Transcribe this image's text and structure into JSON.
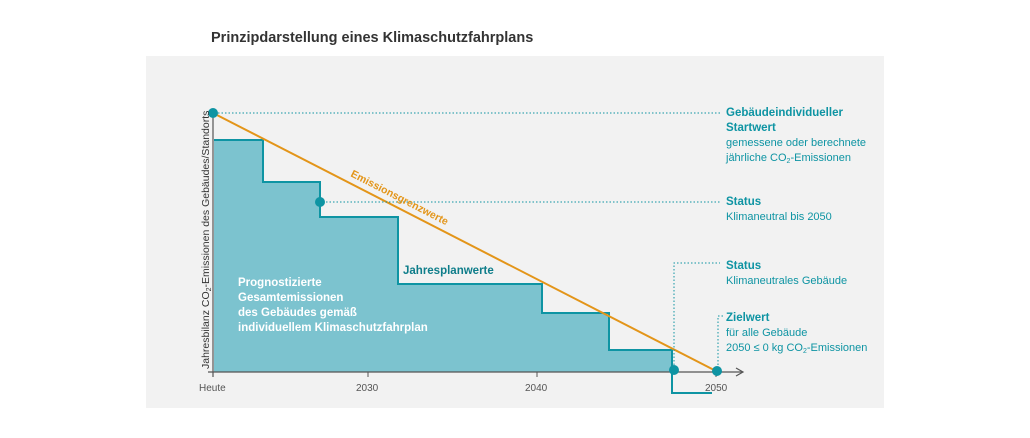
{
  "title": "Prinzipdarstellung eines Klimaschutzfahrplans",
  "y_axis_label_pre": "Jahresbilanz CO",
  "y_axis_label_sub": "2",
  "y_axis_label_post": "-Emissionen des Gebäudes/Standorts",
  "x_ticks": [
    "Heute",
    "2030",
    "2040",
    "2050"
  ],
  "area_label": [
    "Prognostizierte",
    "Gesamtemissionen",
    "des Gebäudes gemäß",
    "individuellem Klimaschutzfahrplan"
  ],
  "steps_label": "Jahresplanwerte",
  "limit_label": "Emissionsgrenzwerte",
  "annotations": {
    "start": {
      "title1": "Gebäudeindividueller",
      "title2": "Startwert",
      "line1": "gemessene oder berechnete",
      "line2_pre": "jährliche CO",
      "line2_sub": "2",
      "line2_post": "-Emissionen"
    },
    "status1": {
      "title": "Status",
      "line1": "Klimaneutral bis 2050"
    },
    "status2": {
      "title": "Status",
      "line1": "Klimaneutrales Gebäude"
    },
    "target": {
      "title": "Zielwert",
      "line1": "für alle Gebäude",
      "line2_pre": "2050 ≤ 0 kg CO",
      "line2_sub": "2",
      "line2_post": "-Emissionen"
    }
  },
  "colors": {
    "area": "#7cc3cf",
    "step_line": "#0e94a3",
    "limit_line": "#e39519",
    "dot": "#0e94a3",
    "accent_text": "#0e94a3"
  }
}
